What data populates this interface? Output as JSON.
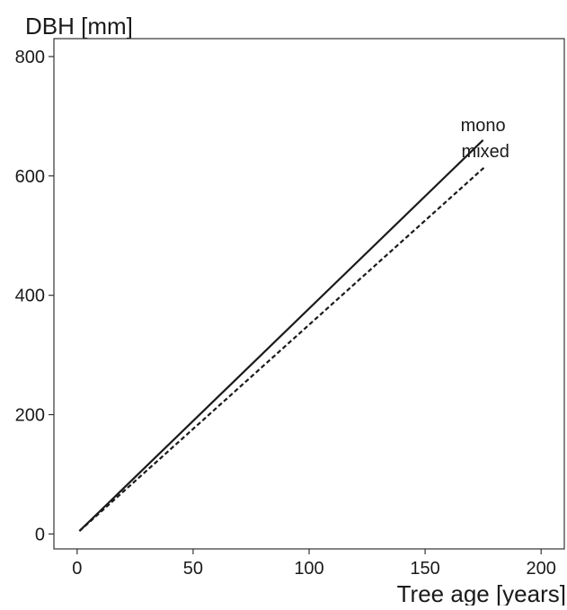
{
  "chart_data": {
    "type": "line",
    "ylabel": "DBH [mm]",
    "xlabel": "Tree age [years]",
    "xlim": [
      -10,
      210
    ],
    "ylim": [
      -25,
      830
    ],
    "x_ticks": [
      0,
      50,
      100,
      150,
      200
    ],
    "y_ticks": [
      0,
      200,
      400,
      600,
      800
    ],
    "x_tick_labels": [
      "0",
      "50",
      "100",
      "150",
      "200"
    ],
    "y_tick_labels": [
      "0",
      "200",
      "400",
      "600",
      "800"
    ],
    "grid": false,
    "series": [
      {
        "name": "mono",
        "line_style": "solid",
        "x": [
          1,
          175
        ],
        "y": [
          5,
          660
        ]
      },
      {
        "name": "mixed",
        "line_style": "dashed",
        "x": [
          1,
          176
        ],
        "y": [
          5,
          616
        ]
      }
    ],
    "colors": {
      "line": "#1a1a1a",
      "axis": "#333333",
      "background": "#ffffff"
    }
  }
}
